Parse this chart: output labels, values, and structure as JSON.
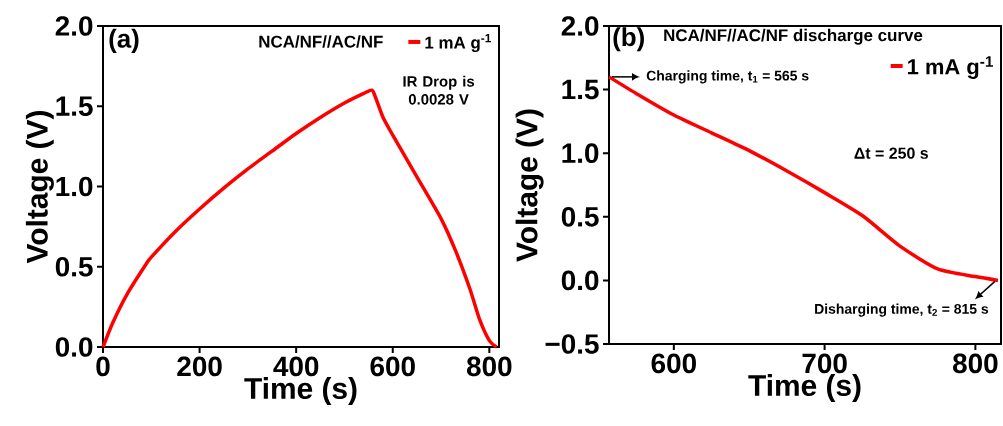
{
  "chart_data": [
    {
      "type": "line",
      "title": "NCA/NF//AC/NF",
      "xlabel": "Time (s)",
      "ylabel": "Voltage (V)",
      "x": [
        0,
        20,
        50,
        90,
        100,
        150,
        200,
        250,
        300,
        350,
        400,
        450,
        500,
        540,
        557,
        565,
        580,
        600,
        650,
        700,
        730,
        760,
        780,
        800,
        815
      ],
      "series": [
        {
          "name": "1 mA g$^{-1}$",
          "color": "#ff0000",
          "values": [
            0,
            0.15,
            0.33,
            0.52,
            0.56,
            0.72,
            0.86,
            0.99,
            1.11,
            1.22,
            1.33,
            1.43,
            1.52,
            1.58,
            1.6,
            1.55,
            1.43,
            1.32,
            1.06,
            0.8,
            0.6,
            0.36,
            0.17,
            0.04,
            0.0
          ]
        }
      ],
      "xlim": [
        0,
        820
      ],
      "xticks": [
        {
          "value": 0,
          "label": "0"
        },
        {
          "value": 200,
          "label": "200"
        },
        {
          "value": 400,
          "label": "400"
        },
        {
          "value": 600,
          "label": "600"
        },
        {
          "value": 800,
          "label": "800"
        }
      ],
      "ylim": [
        0,
        2
      ],
      "yticks": [
        {
          "value": 0,
          "label": "0.0"
        },
        {
          "value": 0.5,
          "label": "0.5"
        },
        {
          "value": 1,
          "label": "1.0"
        },
        {
          "value": 1.5,
          "label": "1.5"
        },
        {
          "value": 2,
          "label": "2.0"
        }
      ],
      "legend": "top right",
      "annotations": [
        "(a)",
        "IR Drop is 0.0028 V"
      ]
    },
    {
      "type": "line",
      "title": "NCA/NF//AC/NF discharge curve",
      "xlabel": "Time (s)",
      "ylabel": "Voltage (V)",
      "x": [
        557,
        575,
        600,
        625,
        650,
        675,
        700,
        725,
        750,
        775,
        800,
        815
      ],
      "series": [
        {
          "name": "1 mA g$^{-1}$",
          "color": "#ff0000",
          "values": [
            1.6,
            1.47,
            1.3,
            1.16,
            1.02,
            0.86,
            0.69,
            0.51,
            0.27,
            0.09,
            0.03,
            0.0
          ]
        }
      ],
      "xlim": [
        557,
        817
      ],
      "xticks": [
        600,
        700,
        800
      ],
      "ylim": [
        -0.5,
        2
      ],
      "yticks": [
        {
          "value": -0.5,
          "label": "−0.5"
        },
        {
          "value": 0,
          "label": "0.0"
        },
        0.5,
        {
          "value": 1,
          "label": "1.0"
        },
        1.5,
        {
          "value": 2,
          "label": "2.0"
        }
      ],
      "legend": "top right",
      "annotations": [
        "(b)",
        "Charging time, t$_{1}$ = 565 s",
        "Δt = 250 s",
        "Disharging time, t$_{2}$ = 815 s"
      ]
    }
  ]
}
